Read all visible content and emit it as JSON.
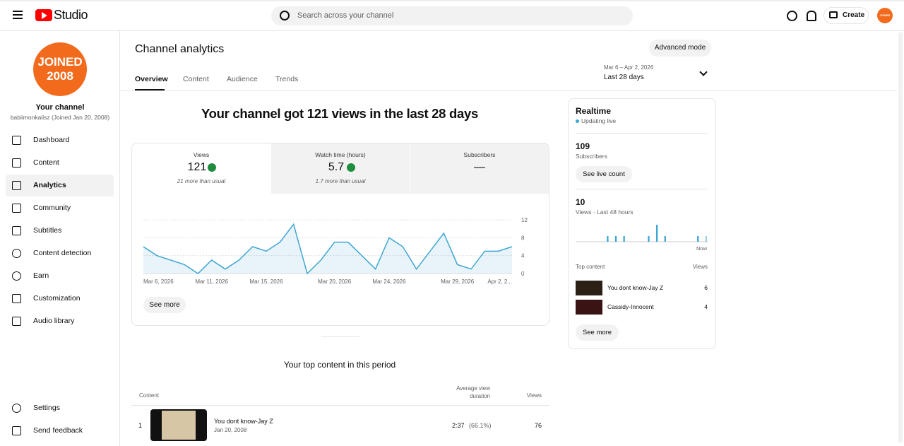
{
  "header": {
    "logo": "Studio",
    "search_placeholder": "Search across your channel",
    "create": "Create",
    "avatar_text": "JOINED 2008"
  },
  "sidebar": {
    "channel_label": "Your channel",
    "channel_sub": "babiimonkaiisz (Joined Jan 20, 2008)",
    "nav": [
      "Dashboard",
      "Content",
      "Analytics",
      "Community",
      "Subtitles",
      "Content detection",
      "Earn",
      "Customization",
      "Audio library"
    ],
    "active": "Analytics",
    "footer": [
      "Settings",
      "Send feedback"
    ]
  },
  "main": {
    "title": "Channel analytics",
    "advanced_mode": "Advanced mode",
    "tabs": [
      "Overview",
      "Content",
      "Audience",
      "Trends"
    ],
    "date_range": "Mar 6 – Apr 2, 2026",
    "period": "Last 28 days",
    "headline": "Your channel got 121 views in the last 28 days",
    "metrics": [
      {
        "label": "Views",
        "value": 121,
        "note": "21 more than usual"
      },
      {
        "label": "Watch time (hours)",
        "value": 5.7,
        "note": "1.7 more than usual"
      },
      {
        "label": "Subscribers",
        "value": "—"
      }
    ],
    "chart": {
      "type": "line",
      "categories": [
        "Mar 6, 2026",
        null,
        null,
        null,
        null,
        "Mar 11, 2026",
        null,
        null,
        null,
        "Mar 15, 2026",
        null,
        null,
        null,
        null,
        "Mar 20, 2026",
        null,
        null,
        null,
        "Mar 24, 2026",
        null,
        null,
        null,
        null,
        "Mar 29, 2026",
        null,
        null,
        null,
        "Apr 2, 2..."
      ],
      "values": [
        6,
        4,
        3,
        2,
        0,
        3,
        1,
        3,
        6,
        5,
        7,
        11,
        0,
        3,
        7,
        7,
        4,
        1,
        8,
        6,
        1,
        5,
        9,
        2,
        1,
        5,
        5,
        6
      ],
      "color": "#3ea6d4",
      "ylim": [
        0,
        12
      ],
      "yticks": [
        0,
        4,
        8,
        12
      ],
      "grid": true
    },
    "see_more": "See more",
    "top_content": {
      "title": "Your top content in this period",
      "columns": [
        "Content",
        "Average view duration",
        "Views"
      ],
      "rows": [
        {
          "rank": 1,
          "title": "You dont know-Jay Z",
          "date": "Jan 20, 2008",
          "duration": "2:37",
          "percent": "(66.1%)",
          "views": 76
        }
      ]
    }
  },
  "realtime": {
    "title": "Realtime",
    "status": "Updating live",
    "subscribers": 109,
    "subscribers_label": "Subscribers",
    "live_button": "See live count",
    "views": 10,
    "views_label": "Views · Last 48 hours",
    "chart": {
      "type": "bar",
      "values": [
        0,
        0,
        0,
        0,
        0,
        0,
        0,
        0,
        0,
        0,
        0,
        1,
        0,
        0,
        1,
        0,
        0,
        1,
        0,
        0,
        0,
        0,
        0,
        0,
        0,
        0,
        1,
        0,
        0,
        3,
        0,
        0,
        1,
        0,
        0,
        0,
        0,
        0,
        0,
        0,
        0,
        0,
        0,
        0,
        1,
        0,
        0,
        1
      ],
      "ylim": [
        0,
        3
      ],
      "color": "#3ea6d4"
    },
    "now_label": "Now",
    "top_content_label": "Top content",
    "views_header": "Views",
    "items": [
      {
        "title": "You dont know-Jay Z",
        "views": 6
      },
      {
        "title": "Cassidy-Innocent",
        "views": 4
      }
    ],
    "see_more": "See more"
  }
}
